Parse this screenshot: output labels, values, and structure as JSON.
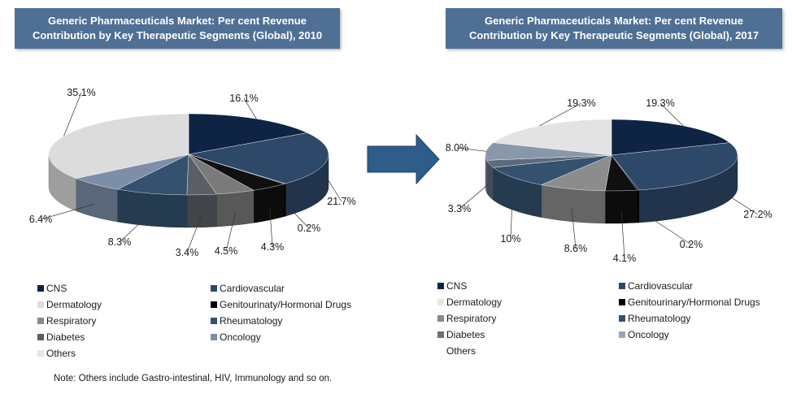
{
  "chart_data": [
    {
      "type": "pie",
      "title_lines": [
        "Generic Pharmaceuticals Market: Per cent Revenue",
        "Contribution by Key Therapeutic Segments (Global), 2010"
      ],
      "slices": [
        {
          "label": "CNS",
          "value": 16.1,
          "value_label": "16.1%",
          "color": "#0f2344"
        },
        {
          "label": "Cardiovascular",
          "value": 21.7,
          "value_label": "21.7%",
          "color": "#2e4869"
        },
        {
          "label": "Genitourinaty/Hormonal Drugs",
          "value": 0.2,
          "value_label": "0.2%",
          "color": "#000000"
        },
        {
          "label": "Rheumatology",
          "value": 4.3,
          "value_label": "4.3%",
          "color": "#101010"
        },
        {
          "label": "Oncology",
          "value": 4.5,
          "value_label": "4.5%",
          "color": "#7a7a7a"
        },
        {
          "label": "Diabetes",
          "value": 3.4,
          "value_label": "3.4%",
          "color": "#5a5e66"
        },
        {
          "label": "Respiratory",
          "value": 8.3,
          "value_label": "8.3%",
          "color": "#34526f"
        },
        {
          "label": "Dermatology",
          "value": 6.4,
          "value_label": "6.4%",
          "color": "#7d8ea8"
        },
        {
          "label": "Others",
          "value": 35.1,
          "value_label": "35.1%",
          "color": "#dcdcdc"
        }
      ],
      "legend": [
        {
          "label": "CNS",
          "color": "#0f2344"
        },
        {
          "label": "Cardiovascular",
          "color": "#2e4869"
        },
        {
          "label": "Dermatology",
          "color": "#dcdcdc"
        },
        {
          "label": "Genitourinaty/Hormonal Drugs",
          "color": "#000000"
        },
        {
          "label": "Respiratory",
          "color": "#8a8a8a"
        },
        {
          "label": "Rheumatology",
          "color": "#34526f"
        },
        {
          "label": "Diabetes",
          "color": "#5a5e66"
        },
        {
          "label": "Oncology",
          "color": "#7d8ea8"
        },
        {
          "label": "Others",
          "color": "#e6e6e6"
        }
      ]
    },
    {
      "type": "pie",
      "title_lines": [
        "Generic Pharmaceuticals Market: Per cent Revenue",
        "Contribution by Key Therapeutic Segments (Global), 2017"
      ],
      "slices": [
        {
          "label": "CNS",
          "value": 19.3,
          "value_label": "19.3%",
          "color": "#0f2344"
        },
        {
          "label": "Cardiovascular",
          "value": 27.2,
          "value_label": "27.2%",
          "color": "#2e4869"
        },
        {
          "label": "Genitourinary/Hormonal Drugs",
          "value": 0.2,
          "value_label": "0.2%",
          "color": "#000000"
        },
        {
          "label": "Rheumatology",
          "value": 4.1,
          "value_label": "4.1%",
          "color": "#101010"
        },
        {
          "label": "Oncology",
          "value": 8.6,
          "value_label": "8.6%",
          "color": "#8c8c8c"
        },
        {
          "label": "Diabetes",
          "value": 10,
          "value_label": "10%",
          "color": "#34526f"
        },
        {
          "label": "Respiratory",
          "value": 3.3,
          "value_label": "3.3%",
          "color": "#5d6a7e"
        },
        {
          "label": "Dermatology",
          "value": 8.0,
          "value_label": "8.0%",
          "color": "#8897ac"
        },
        {
          "label": "Others",
          "value": 19.3,
          "value_label": "19.3%",
          "color": "#e3e3e3"
        }
      ],
      "legend": [
        {
          "label": "CNS",
          "color": "#0f2344"
        },
        {
          "label": "Cardiovascular",
          "color": "#2e4869"
        },
        {
          "label": "Dermatology",
          "color": "#e6e6e6"
        },
        {
          "label": "Genitourinary/Hormonal Drugs",
          "color": "#000000"
        },
        {
          "label": "Respiratory",
          "color": "#8a8a8a"
        },
        {
          "label": "Rheumatology",
          "color": "#34526f"
        },
        {
          "label": "Diabetes",
          "color": "#707070"
        },
        {
          "label": "Oncology",
          "color": "#9aa6b8"
        },
        {
          "label": "Others",
          "color": ""
        }
      ]
    }
  ],
  "note": "Note: Others include Gastro-intestinal, HIV, Immunology and so on.",
  "arrow_color": "#2e5d8a"
}
